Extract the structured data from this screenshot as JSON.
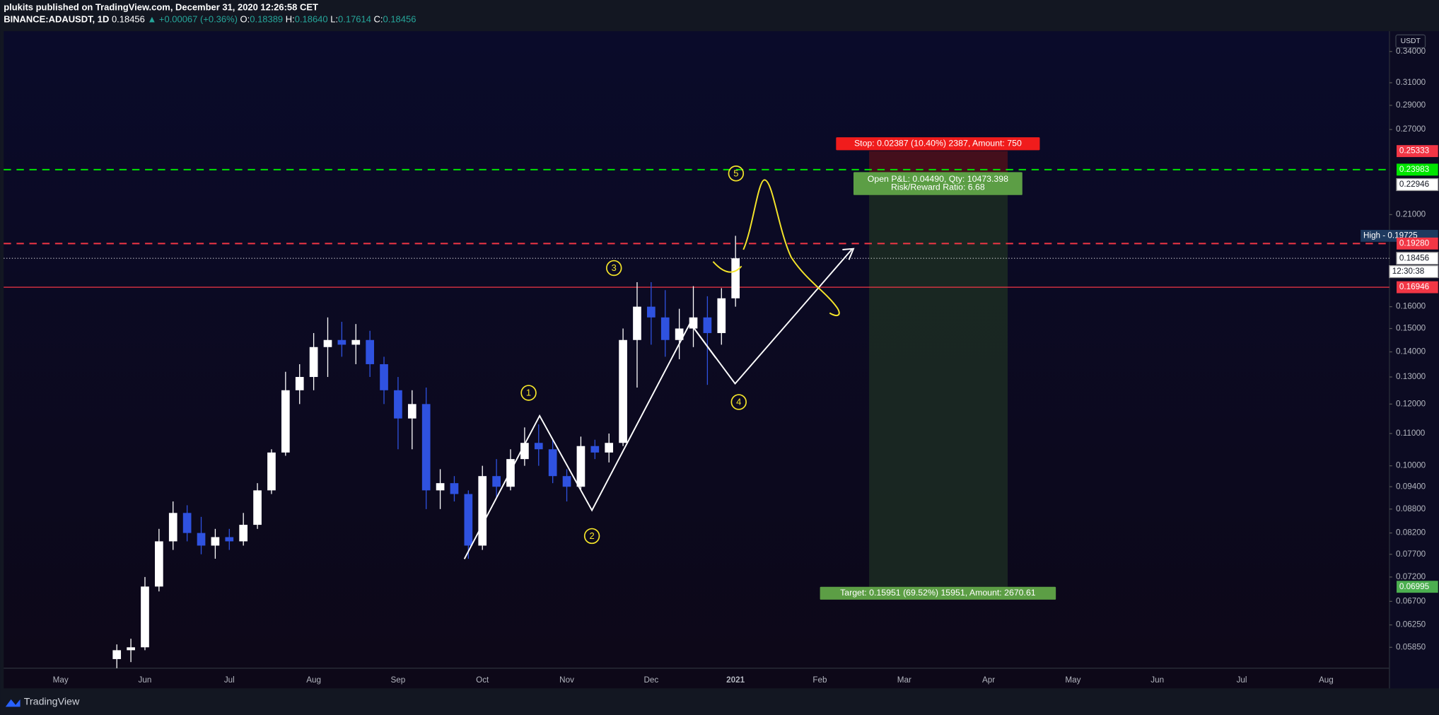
{
  "header": {
    "author_line": "plukits published on TradingView.com, December 31, 2020 12:26:58 CET",
    "symbol": "BINANCE:ADAUSDT, 1D",
    "last": "0.18456",
    "change": "▲ +0.00067 (+0.36%)",
    "o_label": "O:",
    "open": "0.18389",
    "h_label": "H:",
    "high": "0.18640",
    "l_label": "L:",
    "low": "0.17614",
    "c_label": "C:",
    "close": "0.18456"
  },
  "chart_data": {
    "type": "candlestick",
    "log_scale": true,
    "currency": "USDT",
    "up_color": "#ffffff",
    "down_color": "#2f52e0",
    "categories": [
      "May",
      null,
      null,
      null,
      null,
      null,
      "Jun",
      null,
      null,
      null,
      null,
      null,
      "Jul",
      null,
      null,
      null,
      null,
      null,
      "Aug",
      null,
      null,
      null,
      null,
      null,
      "Sep",
      null,
      null,
      null,
      null,
      null,
      "Oct",
      null,
      null,
      null,
      null,
      null,
      "Nov",
      null,
      null,
      null,
      null,
      null,
      "Dec",
      null,
      null,
      null,
      null,
      null,
      "2021",
      null,
      null,
      null,
      null,
      null,
      "Feb",
      null,
      null,
      null,
      null,
      null,
      "Mar",
      null,
      null,
      null,
      null,
      null,
      "Apr",
      null,
      null,
      null,
      null,
      null,
      "May",
      null,
      null,
      null,
      null,
      null,
      "Jun",
      null,
      null,
      null,
      null,
      null,
      "Jul",
      null,
      null,
      null,
      null,
      null,
      "Aug",
      null
    ],
    "open": [
      null,
      null,
      null,
      null,
      0.0565,
      0.058,
      0.0585,
      0.07,
      0.08,
      0.087,
      0.082,
      0.079,
      0.081,
      0.08,
      0.084,
      0.093,
      0.104,
      0.125,
      0.13,
      0.142,
      0.145,
      0.143,
      0.145,
      0.135,
      0.125,
      0.115,
      0.12,
      0.093,
      0.095,
      0.092,
      0.079,
      0.097,
      0.094,
      0.102,
      0.107,
      0.105,
      0.097,
      0.094,
      0.106,
      0.104,
      0.107,
      0.145,
      0.16,
      0.155,
      0.145,
      0.15,
      0.155,
      0.148,
      0.164,
      null,
      null,
      null,
      null,
      null,
      null,
      null,
      null,
      null,
      null,
      null,
      null,
      null,
      null,
      null,
      null,
      null,
      null,
      null,
      null,
      null,
      null,
      null,
      null,
      null,
      null,
      null,
      null,
      null,
      null,
      null,
      null,
      null,
      null,
      null,
      null,
      null,
      null,
      null,
      null,
      null,
      null,
      null
    ],
    "high": [
      null,
      null,
      null,
      null,
      0.059,
      0.06,
      0.072,
      0.083,
      0.09,
      0.089,
      0.086,
      0.083,
      0.083,
      0.087,
      0.095,
      0.105,
      0.132,
      0.135,
      0.148,
      0.155,
      0.153,
      0.152,
      0.149,
      0.138,
      0.13,
      0.125,
      0.126,
      0.099,
      0.097,
      0.093,
      0.1,
      0.102,
      0.105,
      0.112,
      0.113,
      0.108,
      0.099,
      0.109,
      0.108,
      0.11,
      0.15,
      0.172,
      0.172,
      0.168,
      0.159,
      0.17,
      0.165,
      0.169,
      0.19725,
      null,
      null,
      null,
      null,
      null,
      null,
      null,
      null,
      null,
      null,
      null,
      null,
      null,
      null,
      null,
      null,
      null,
      null,
      null,
      null,
      null,
      null,
      null,
      null,
      null,
      null,
      null,
      null,
      null,
      null,
      null,
      null,
      null,
      null,
      null,
      null,
      null,
      null,
      null,
      null,
      null,
      null,
      null
    ],
    "low": [
      null,
      null,
      null,
      null,
      0.055,
      0.056,
      0.058,
      0.069,
      0.078,
      0.08,
      0.077,
      0.076,
      0.078,
      0.079,
      0.083,
      0.092,
      0.103,
      0.12,
      0.125,
      0.13,
      0.138,
      0.135,
      0.13,
      0.12,
      0.105,
      0.105,
      0.088,
      0.088,
      0.09,
      0.076,
      0.078,
      0.091,
      0.093,
      0.1,
      0.1,
      0.095,
      0.09,
      0.093,
      0.102,
      0.101,
      0.106,
      0.126,
      0.143,
      0.138,
      0.137,
      0.142,
      0.127,
      0.143,
      0.16,
      null,
      null,
      null,
      null,
      null,
      null,
      null,
      null,
      null,
      null,
      null,
      null,
      null,
      null,
      null,
      null,
      null,
      null,
      null,
      null,
      null,
      null,
      null,
      null,
      null,
      null,
      null,
      null,
      null,
      null,
      null,
      null,
      null,
      null,
      null,
      null,
      null,
      null,
      null,
      null,
      null,
      null,
      null
    ],
    "close": [
      null,
      null,
      null,
      null,
      0.058,
      0.0585,
      0.07,
      0.08,
      0.087,
      0.082,
      0.079,
      0.081,
      0.08,
      0.084,
      0.093,
      0.104,
      0.125,
      0.13,
      0.142,
      0.145,
      0.143,
      0.145,
      0.135,
      0.125,
      0.115,
      0.12,
      0.093,
      0.095,
      0.092,
      0.079,
      0.097,
      0.094,
      0.102,
      0.107,
      0.105,
      0.097,
      0.094,
      0.106,
      0.104,
      0.107,
      0.145,
      0.16,
      0.155,
      0.145,
      0.15,
      0.155,
      0.148,
      0.164,
      0.18456,
      null,
      null,
      null,
      null,
      null,
      null,
      null,
      null,
      null,
      null,
      null,
      null,
      null,
      null,
      null,
      null,
      null,
      null,
      null,
      null,
      null,
      null,
      null,
      null,
      null,
      null,
      null,
      null,
      null,
      null,
      null,
      null,
      null,
      null,
      null,
      null,
      null,
      null,
      null,
      null,
      null,
      null,
      null
    ],
    "ylim": [
      0.055,
      0.36
    ],
    "yticks": [
      {
        "value": 0.34,
        "label": "0.34000"
      },
      {
        "value": 0.31,
        "label": "0.31000"
      },
      {
        "value": 0.29,
        "label": "0.29000"
      },
      {
        "value": 0.27,
        "label": "0.27000"
      },
      {
        "value": 0.21,
        "label": "0.21000"
      },
      {
        "value": 0.16,
        "label": "0.16000"
      },
      {
        "value": 0.15,
        "label": "0.15000"
      },
      {
        "value": 0.14,
        "label": "0.14000"
      },
      {
        "value": 0.13,
        "label": "0.13000"
      },
      {
        "value": 0.12,
        "label": "0.12000"
      },
      {
        "value": 0.11,
        "label": "0.11000"
      },
      {
        "value": 0.1,
        "label": "0.10000"
      },
      {
        "value": 0.094,
        "label": "0.09400"
      },
      {
        "value": 0.088,
        "label": "0.08800"
      },
      {
        "value": 0.082,
        "label": "0.08200"
      },
      {
        "value": 0.077,
        "label": "0.07700"
      },
      {
        "value": 0.072,
        "label": "0.07200"
      },
      {
        "value": 0.067,
        "label": "0.06700"
      },
      {
        "value": 0.0625,
        "label": "0.06250"
      },
      {
        "value": 0.0585,
        "label": "0.05850"
      }
    ]
  },
  "price_levels": [
    {
      "value": 0.25333,
      "color": "#f23645"
    },
    {
      "value": 0.23983,
      "color": "#00e600",
      "line": "dashed"
    },
    {
      "value": 0.22946,
      "color": "#ffffff"
    },
    {
      "value": 0.19725,
      "label": "High - 0.19725",
      "color": "#1e3a5f"
    },
    {
      "value": 0.1928,
      "label": "0.19280",
      "color": "#f23645",
      "line": "dashed"
    },
    {
      "value": 0.18456,
      "color": "#ffffff",
      "line": "dotted"
    },
    {
      "value": 0.16946,
      "color": "#f23645",
      "line": "solid"
    },
    {
      "value": 0.06995,
      "color": "#4caf50"
    }
  ],
  "countdown": "12:30:38",
  "position": {
    "stop": 0.25333,
    "entry": 0.22946,
    "target": 0.06995,
    "stop_label": "Stop: 0.02387 (10.40%) 2387, Amount: 750",
    "pnl_label": "Open P&L: 0.04490, Qty: 10473.398",
    "ratio_label": "Risk/Reward Ratio: 6.68",
    "target_label": "Target: 0.15951 (69.52%) 15951, Amount: 2670.61"
  },
  "wave_labels": [
    1,
    2,
    3,
    4,
    5
  ],
  "footer": {
    "brand": "TradingView"
  }
}
